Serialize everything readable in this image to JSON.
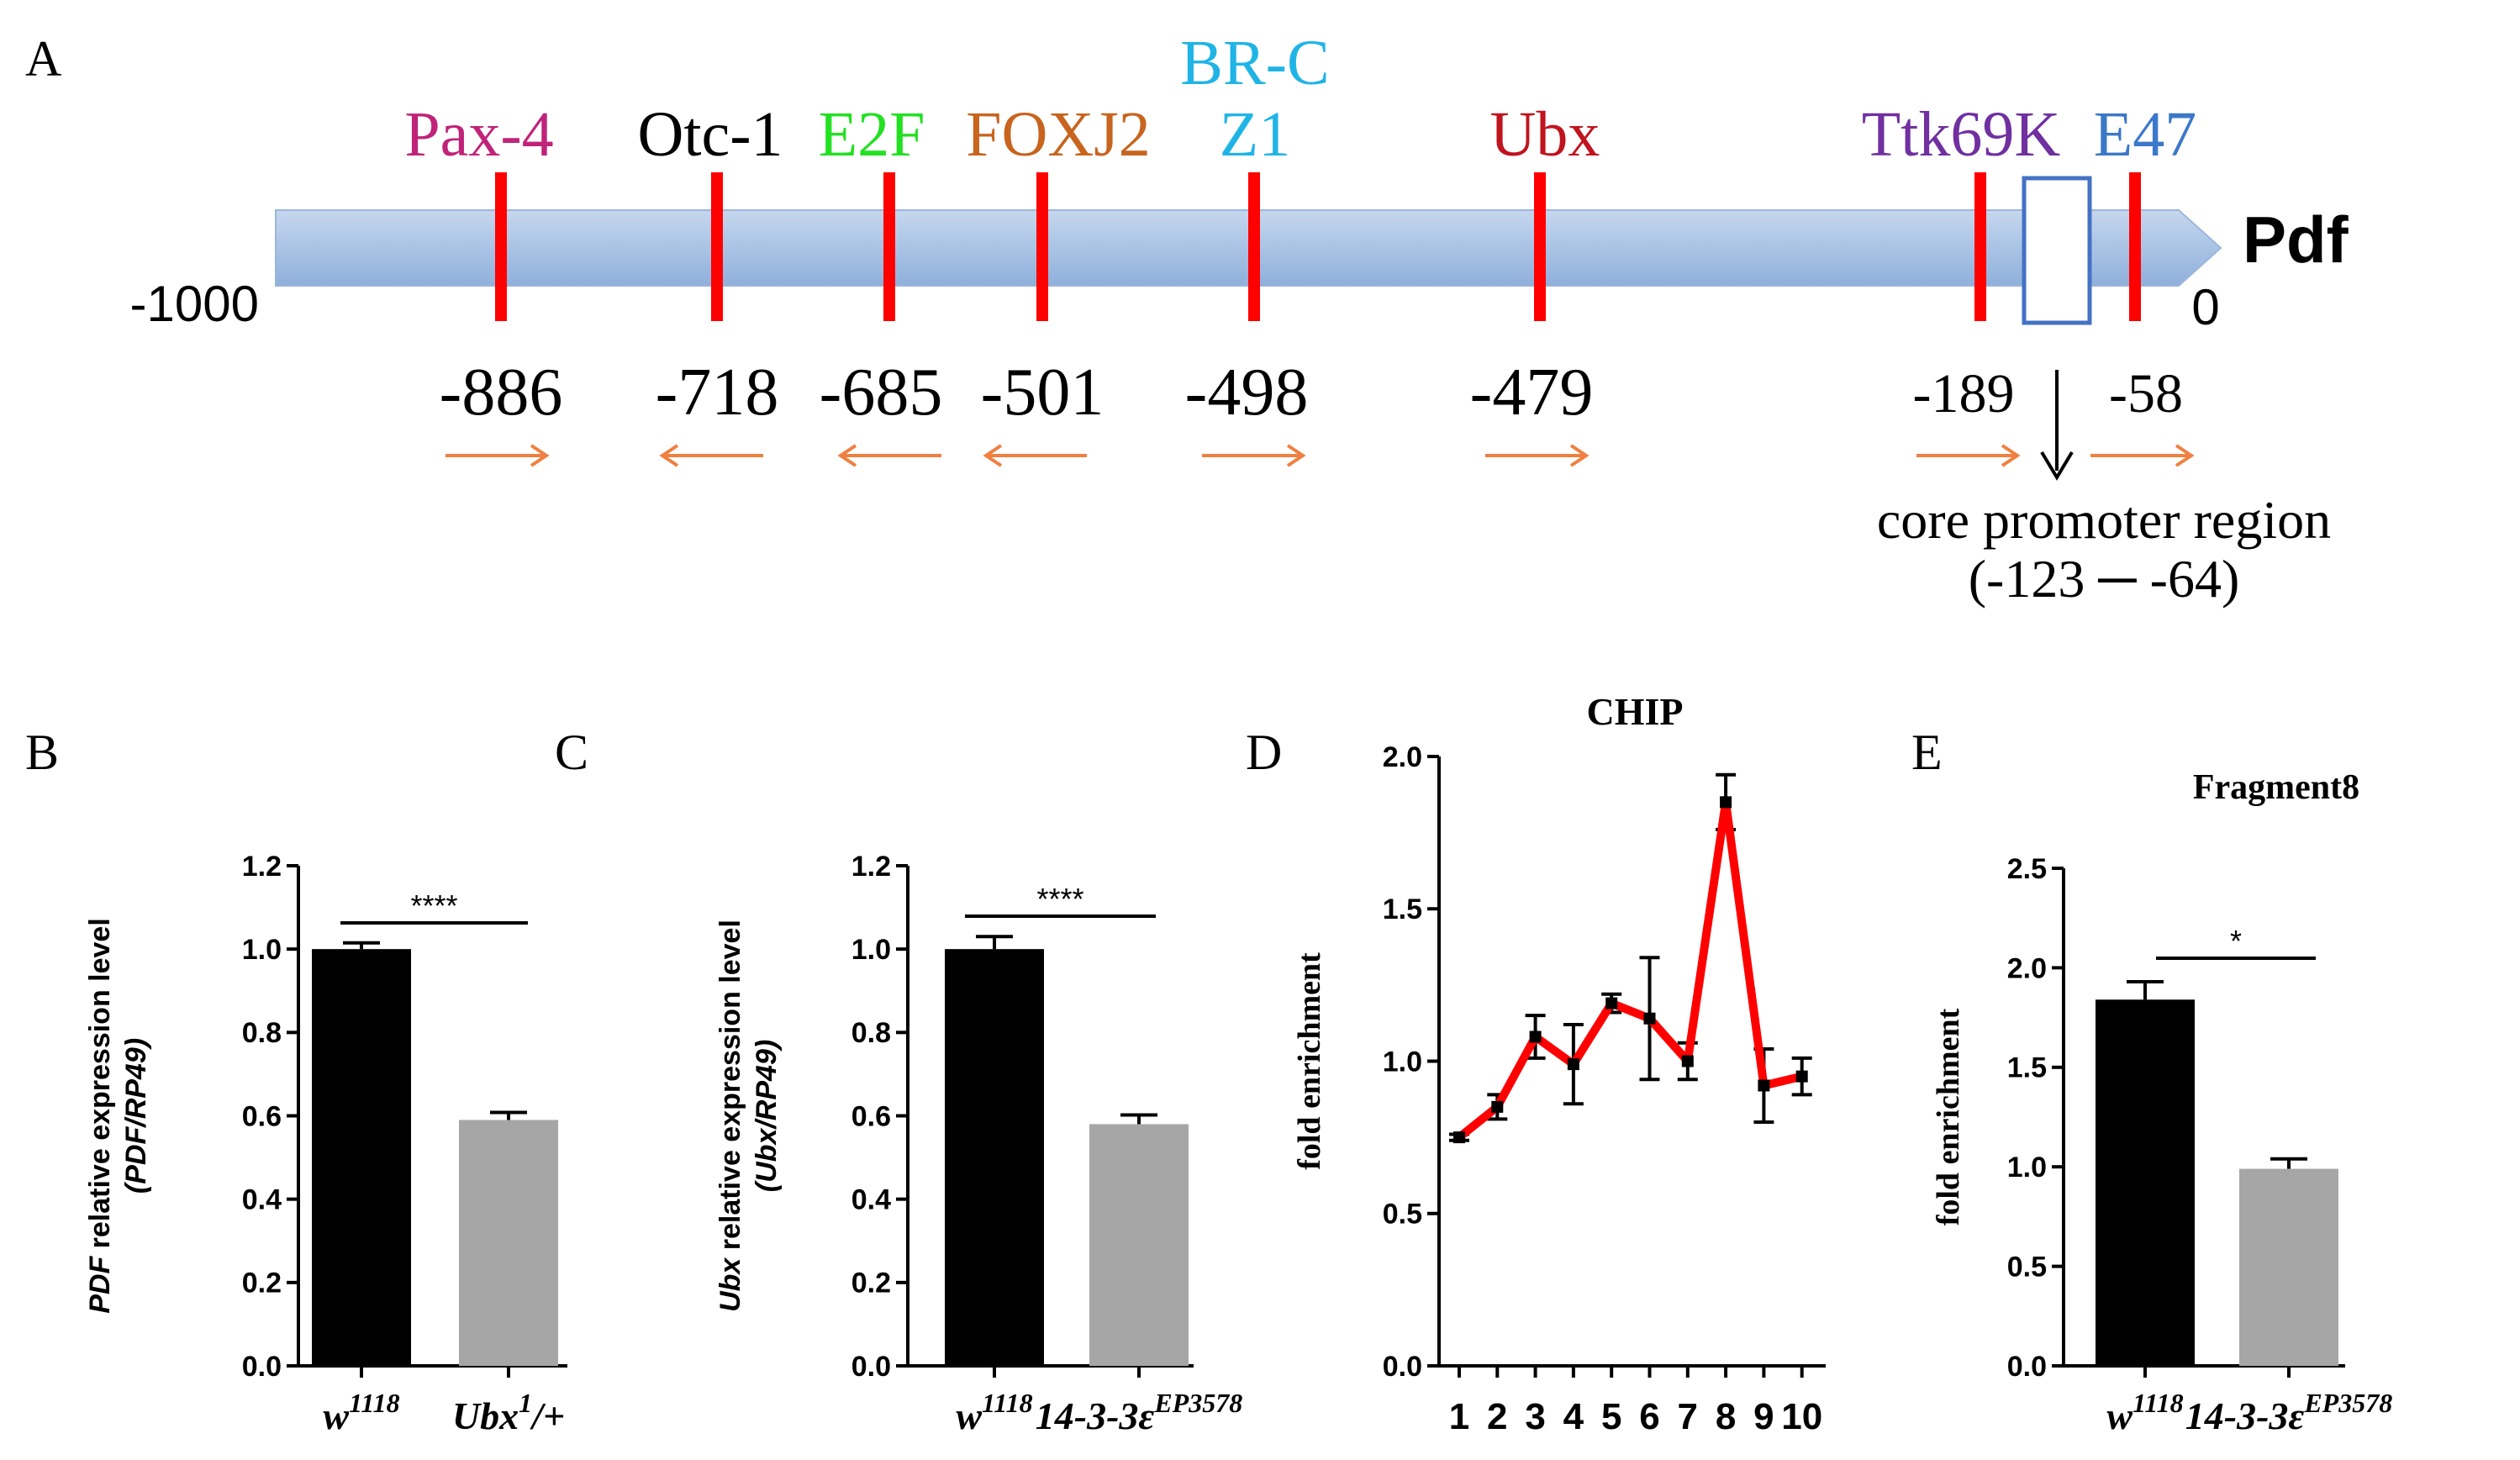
{
  "panel_a": {
    "letter": "A",
    "gene_label": "Pdf",
    "start_label": "-1000",
    "end_label": "0",
    "core_promoter": {
      "line1": "core promoter region",
      "line2": "(-123 ─ -64)"
    },
    "sites": [
      {
        "factors": [
          "Pax-4"
        ],
        "colors": [
          "#c0237a"
        ],
        "position": "-886",
        "strand": "forward"
      },
      {
        "factors": [
          "Otc-1"
        ],
        "colors": [
          "#000000"
        ],
        "position": "-718",
        "strand": "reverse"
      },
      {
        "factors": [
          "E2F"
        ],
        "colors": [
          "#22e022"
        ],
        "position": "-685",
        "strand": "reverse"
      },
      {
        "factors": [
          "FOXJ2"
        ],
        "colors": [
          "#c8641e"
        ],
        "position": "-501",
        "strand": "reverse"
      },
      {
        "factors": [
          "BR-C",
          "Z1"
        ],
        "colors": [
          "#20b4e6",
          "#20b4e6"
        ],
        "position": "-498",
        "strand": "forward"
      },
      {
        "factors": [
          "Ubx"
        ],
        "colors": [
          "#c0141e"
        ],
        "position": "-479",
        "strand": "forward"
      },
      {
        "factors": [
          "Ttk69K"
        ],
        "colors": [
          "#7030a0"
        ],
        "position": "-189",
        "strand": "forward"
      },
      {
        "factors": [
          "E47"
        ],
        "colors": [
          "#3c78c8"
        ],
        "position": "-58",
        "strand": "forward"
      }
    ],
    "colors": {
      "bar_top": "#c5d7ee",
      "bar_bottom": "#8fb0dc",
      "site": "#ff0000",
      "arrow": "#f08040",
      "box": "#4472c4"
    }
  },
  "chart_data": [
    {
      "panel": "B",
      "type": "bar",
      "title": "",
      "ylabel_italic": "PDF",
      "ylabel": " relative expression level",
      "ylabel2": "(PDF/RP49)",
      "ylim": [
        0,
        1.2
      ],
      "yticks": [
        "0.0",
        "0.2",
        "0.4",
        "0.6",
        "0.8",
        "1.0",
        "1.2"
      ],
      "categories": [
        {
          "base": "w",
          "sup": "1118",
          "suffix": ""
        },
        {
          "base": "Ubx",
          "sup": "1",
          "suffix": "/+"
        }
      ],
      "values": [
        1.0,
        0.59
      ],
      "errors": [
        0.015,
        0.018
      ],
      "bar_colors": [
        "#000000",
        "#a6a6a6"
      ],
      "significance": "****"
    },
    {
      "panel": "C",
      "type": "bar",
      "title": "",
      "ylabel_italic": "Ubx",
      "ylabel": " relative expression level",
      "ylabel2": "(Ubx/RP49)",
      "ylim": [
        0,
        1.2
      ],
      "yticks": [
        "0.0",
        "0.2",
        "0.4",
        "0.6",
        "0.8",
        "1.0",
        "1.2"
      ],
      "categories": [
        {
          "base": "w",
          "sup": "1118",
          "suffix": ""
        },
        {
          "base": "14-3-3ε",
          "sup": "EP3578",
          "suffix": ""
        }
      ],
      "values": [
        1.0,
        0.58
      ],
      "errors": [
        0.03,
        0.022
      ],
      "bar_colors": [
        "#000000",
        "#a6a6a6"
      ],
      "significance": "****"
    },
    {
      "panel": "D",
      "type": "line",
      "title": "CHIP",
      "ylabel": "fold enrichment",
      "ylim": [
        0,
        2.0
      ],
      "yticks": [
        "0.0",
        "0.5",
        "1.0",
        "1.5",
        "2.0"
      ],
      "x": [
        "1",
        "2",
        "3",
        "4",
        "5",
        "6",
        "7",
        "8",
        "9",
        "10"
      ],
      "values": [
        0.75,
        0.85,
        1.08,
        0.99,
        1.19,
        1.14,
        1.0,
        1.85,
        0.92,
        0.95
      ],
      "errors": [
        0.01,
        0.04,
        0.07,
        0.13,
        0.03,
        0.2,
        0.06,
        0.09,
        0.12,
        0.06
      ],
      "line_color": "#ff0000"
    },
    {
      "panel": "E",
      "type": "bar",
      "title": "Fragment8",
      "ylabel": "fold enrichment",
      "ylim": [
        0,
        2.5
      ],
      "yticks": [
        "0.0",
        "0.5",
        "1.0",
        "1.5",
        "2.0",
        "2.5"
      ],
      "categories": [
        {
          "base": "w",
          "sup": "1118",
          "suffix": ""
        },
        {
          "base": "14-3-3ε",
          "sup": "EP3578",
          "suffix": ""
        }
      ],
      "values": [
        1.84,
        0.99
      ],
      "errors": [
        0.09,
        0.05
      ],
      "bar_colors": [
        "#000000",
        "#a6a6a6"
      ],
      "significance": "*"
    }
  ]
}
